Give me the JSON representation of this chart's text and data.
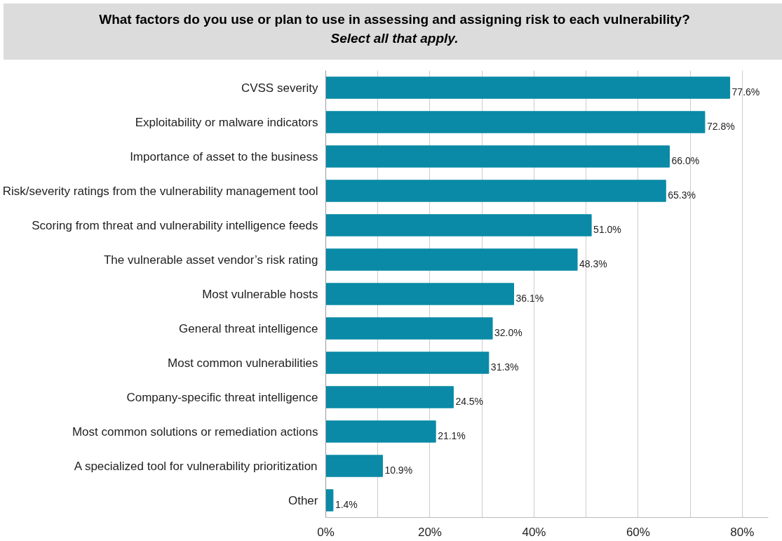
{
  "chart_data": {
    "type": "bar",
    "orientation": "horizontal",
    "title": "What factors do you use or plan to use in assessing and assigning risk to each vulnerability?",
    "subtitle": "Select all that apply.",
    "categories": [
      "CVSS severity",
      "Exploitability or malware indicators",
      "Importance of asset to the business",
      "Risk/severity ratings from the vulnerability management tool",
      "Scoring from threat and vulnerability intelligence feeds",
      "The vulnerable asset vendor’s risk rating",
      "Most vulnerable hosts",
      "General threat intelligence",
      "Most common vulnerabilities",
      "Company-specific threat intelligence",
      "Most common solutions or remediation actions",
      "A specialized tool for vulnerability prioritization",
      "Other"
    ],
    "values": [
      77.6,
      72.8,
      66.0,
      65.3,
      51.0,
      48.3,
      36.1,
      32.0,
      31.3,
      24.5,
      21.1,
      10.9,
      1.4
    ],
    "value_labels": [
      "77.6%",
      "72.8%",
      "66.0%",
      "65.3%",
      "51.0%",
      "48.3%",
      "36.1%",
      "32.0%",
      "31.3%",
      "24.5%",
      "21.1%",
      "10.9%",
      "1.4%"
    ],
    "color": "#0a8aa6",
    "xlim": [
      0,
      85
    ],
    "xticks": [
      {
        "value": 0,
        "label": "0%"
      },
      {
        "value": 10,
        "label": null
      },
      {
        "value": 20,
        "label": "20%"
      },
      {
        "value": 30,
        "label": null
      },
      {
        "value": 40,
        "label": "40%"
      },
      {
        "value": 50,
        "label": null
      },
      {
        "value": 60,
        "label": "60%"
      },
      {
        "value": 70,
        "label": null
      },
      {
        "value": 80,
        "label": "80%"
      }
    ],
    "grid": "x"
  }
}
